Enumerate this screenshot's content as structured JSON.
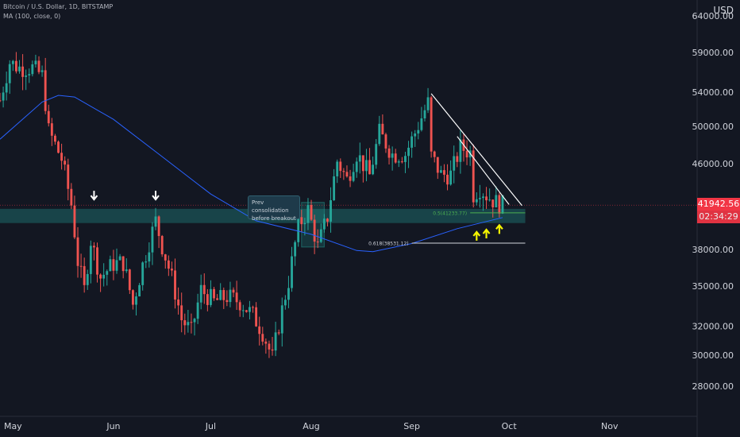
{
  "header": {
    "symbol": "Bitcoin / U.S. Dollar, 1D, BITSTAMP",
    "indicator": "MA (100, close, 0)",
    "currency": "USD"
  },
  "colors": {
    "background": "#131722",
    "up": "#26a69a",
    "down": "#ef5350",
    "ma": "#2962ff",
    "zone": "#26a69a",
    "fib_05": "#4caf50",
    "fib_0618": "#9598a1",
    "trendline": "#ffffff",
    "arrow_up": "#f5f500",
    "arrow_down": "#ffffff"
  },
  "price_tag": {
    "last": "41942.56",
    "countdown": "02:34:29"
  },
  "annotation": {
    "callout": "Prev consolidation before breakout"
  },
  "chart_data": {
    "type": "candlestick",
    "y_axis": {
      "scale": "log",
      "ylim": [
        27000,
        65500
      ],
      "tick_labels": [
        "64000.00",
        "59000.00",
        "54000.00",
        "50000.00",
        "46000.00",
        "38000.00",
        "35000.00",
        "32000.00",
        "30000.00",
        "28000.00"
      ],
      "ticks": [
        64000,
        59000,
        54000,
        50000,
        46000,
        38000,
        35000,
        32000,
        30000,
        28000
      ]
    },
    "x_axis": {
      "range": [
        "2021-04-27",
        "2021-11-28"
      ],
      "tick_labels": [
        {
          "date": "2021-05-01",
          "label": "May"
        },
        {
          "date": "2021-06-01",
          "label": "Jun"
        },
        {
          "date": "2021-07-01",
          "label": "Jul"
        },
        {
          "date": "2021-08-01",
          "label": "Aug"
        },
        {
          "date": "2021-09-01",
          "label": "Sep"
        },
        {
          "date": "2021-10-01",
          "label": "Oct"
        },
        {
          "date": "2021-11-01",
          "label": "Nov"
        }
      ]
    },
    "close_path": [
      [
        "2021-04-27",
        53000
      ],
      [
        "2021-04-30",
        57700
      ],
      [
        "2021-05-03",
        57000
      ],
      [
        "2021-05-07",
        57000
      ],
      [
        "2021-05-10",
        56000
      ],
      [
        "2021-05-12",
        49500
      ],
      [
        "2021-05-16",
        46500
      ],
      [
        "2021-05-19",
        42000
      ],
      [
        "2021-05-21",
        37000
      ],
      [
        "2021-05-23",
        34700
      ],
      [
        "2021-05-25",
        38800
      ],
      [
        "2021-05-28",
        35700
      ],
      [
        "2021-06-01",
        36800
      ],
      [
        "2021-06-04",
        36900
      ],
      [
        "2021-06-07",
        33600
      ],
      [
        "2021-06-10",
        36700
      ],
      [
        "2021-06-14",
        40500
      ],
      [
        "2021-06-16",
        38300
      ],
      [
        "2021-06-19",
        35600
      ],
      [
        "2021-06-22",
        32500
      ],
      [
        "2021-06-25",
        31600
      ],
      [
        "2021-06-28",
        34700
      ],
      [
        "2021-07-02",
        33800
      ],
      [
        "2021-07-06",
        34200
      ],
      [
        "2021-07-10",
        33800
      ],
      [
        "2021-07-14",
        32800
      ],
      [
        "2021-07-17",
        31600
      ],
      [
        "2021-07-20",
        29800
      ],
      [
        "2021-07-22",
        32100
      ],
      [
        "2021-07-25",
        35400
      ],
      [
        "2021-07-28",
        40000
      ],
      [
        "2021-07-31",
        41500
      ],
      [
        "2021-08-03",
        38200
      ],
      [
        "2021-08-06",
        40900
      ],
      [
        "2021-08-09",
        46300
      ],
      [
        "2021-08-12",
        44400
      ],
      [
        "2021-08-15",
        47100
      ],
      [
        "2021-08-19",
        44800
      ],
      [
        "2021-08-22",
        49300
      ],
      [
        "2021-08-26",
        47000
      ],
      [
        "2021-08-30",
        47000
      ],
      [
        "2021-09-02",
        49300
      ],
      [
        "2021-09-06",
        52700
      ],
      [
        "2021-09-07",
        46800
      ],
      [
        "2021-09-10",
        44900
      ],
      [
        "2021-09-13",
        44900
      ],
      [
        "2021-09-16",
        47700
      ],
      [
        "2021-09-19",
        47200
      ],
      [
        "2021-09-20",
        43000
      ],
      [
        "2021-09-22",
        43600
      ],
      [
        "2021-09-24",
        42900
      ],
      [
        "2021-09-27",
        42200
      ],
      [
        "2021-09-29",
        41943
      ]
    ],
    "series": [
      {
        "name": "MA (100, close, 0)",
        "type": "line",
        "points": [
          [
            "2021-04-27",
            48600
          ],
          [
            "2021-05-10",
            52800
          ],
          [
            "2021-05-15",
            53600
          ],
          [
            "2021-05-20",
            53400
          ],
          [
            "2021-06-01",
            50800
          ],
          [
            "2021-06-15",
            47000
          ],
          [
            "2021-07-01",
            43000
          ],
          [
            "2021-07-15",
            40500
          ],
          [
            "2021-08-01",
            39300
          ],
          [
            "2021-08-15",
            37900
          ],
          [
            "2021-08-20",
            37800
          ],
          [
            "2021-09-01",
            38500
          ],
          [
            "2021-09-15",
            39800
          ],
          [
            "2021-09-29",
            40800
          ]
        ]
      }
    ],
    "zones": [
      {
        "name": "support-zone",
        "from": "2021-04-27",
        "to": "2021-10-06",
        "y_low": 40300,
        "y_high": 41600
      },
      {
        "name": "consolidation-box",
        "from": "2021-07-29",
        "to": "2021-08-05",
        "y_low": 38200,
        "y_high": 42200
      }
    ],
    "fib_levels": [
      {
        "label": "0.5(41233.77)",
        "value": 41233.77,
        "from": "2021-09-19",
        "to": "2021-10-06",
        "color": "#4caf50"
      },
      {
        "label": "0.618(38531.12)",
        "value": 38531.12,
        "from": "2021-09-01",
        "to": "2021-10-06",
        "color": "#d1d4dc"
      }
    ],
    "trendlines": [
      {
        "from": [
          "2021-09-07",
          53800
        ],
        "to": [
          "2021-10-05",
          41900
        ]
      },
      {
        "from": [
          "2021-09-15",
          48900
        ],
        "to": [
          "2021-10-01",
          42000
        ]
      }
    ],
    "markers": [
      {
        "type": "arrow-down",
        "date": "2021-05-26",
        "value": 42700
      },
      {
        "type": "arrow-down",
        "date": "2021-06-14",
        "value": 42700
      },
      {
        "type": "arrow-up",
        "date": "2021-09-21",
        "value": 39300
      },
      {
        "type": "arrow-up",
        "date": "2021-09-24",
        "value": 39500
      },
      {
        "type": "arrow-up",
        "date": "2021-09-28",
        "value": 39900
      }
    ]
  }
}
